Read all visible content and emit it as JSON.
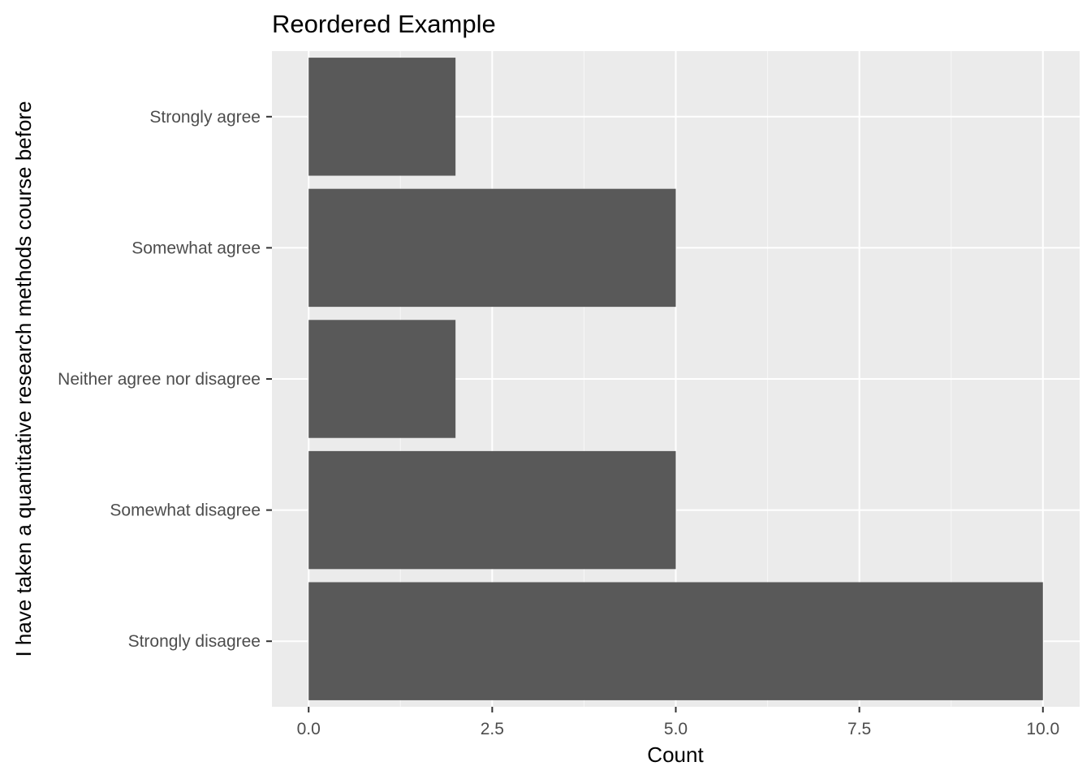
{
  "chart_data": {
    "type": "bar",
    "orientation": "horizontal",
    "title": "Reordered Example",
    "xlabel": "Count",
    "ylabel": "I have taken a quantitative research methods course before",
    "categories": [
      "Strongly disagree",
      "Somewhat disagree",
      "Neither agree nor disagree",
      "Somewhat agree",
      "Strongly agree"
    ],
    "values": [
      10,
      5,
      2,
      5,
      2
    ],
    "xlim": [
      -0.5,
      10.5
    ],
    "xticks": [
      0,
      2.5,
      5,
      7.5,
      10
    ],
    "xtick_labels": [
      "0.0",
      "2.5",
      "5.0",
      "7.5",
      "10.0"
    ],
    "grid": true,
    "legend": "none",
    "colors": {
      "panel_background": "#ebebeb",
      "grid_major": "#ffffff",
      "bar_fill": "#595959",
      "tick_text": "#4d4d4d",
      "tick_mark": "#333333"
    }
  }
}
